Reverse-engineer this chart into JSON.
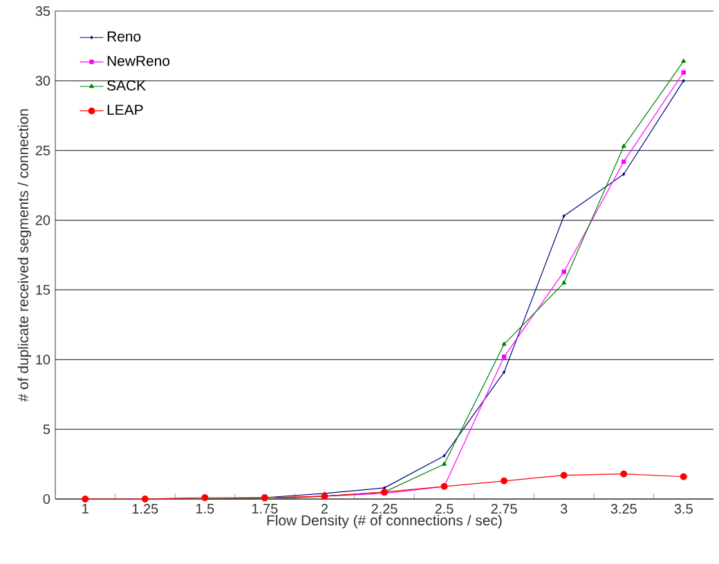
{
  "chart_data": {
    "type": "line",
    "xlabel": "Flow Density (# of connections / sec)",
    "ylabel": "# of duplicate received segments / connection",
    "categories": [
      "1",
      "1.25",
      "1.5",
      "1.75",
      "2",
      "2.25",
      "2.5",
      "2.75",
      "3",
      "3.25",
      "3.5"
    ],
    "series": [
      {
        "name": "Reno",
        "color": "#000080",
        "marker": "diamond",
        "values": [
          null,
          null,
          0,
          0.1,
          0.4,
          0.8,
          3.1,
          9.1,
          20.3,
          23.3,
          30.0
        ]
      },
      {
        "name": "NewReno",
        "color": "#ff00ff",
        "marker": "square",
        "values": [
          null,
          null,
          null,
          0,
          0.2,
          0.4,
          0.9,
          10.2,
          16.3,
          24.2,
          30.6
        ]
      },
      {
        "name": "SACK",
        "color": "#008000",
        "marker": "triangle",
        "values": [
          null,
          null,
          0,
          0,
          0.2,
          0.5,
          2.5,
          11.1,
          15.5,
          25.3,
          31.4
        ]
      },
      {
        "name": "LEAP",
        "color": "#ff0000",
        "marker": "circle",
        "values": [
          0,
          0,
          0.1,
          0.1,
          0.2,
          0.5,
          0.9,
          1.3,
          1.7,
          1.8,
          1.6
        ]
      }
    ],
    "ylim": [
      0,
      35
    ],
    "yticks": [
      0,
      5,
      10,
      15,
      20,
      25,
      30,
      35
    ],
    "grid": "y",
    "legend": "top left",
    "line_style": "solid"
  }
}
